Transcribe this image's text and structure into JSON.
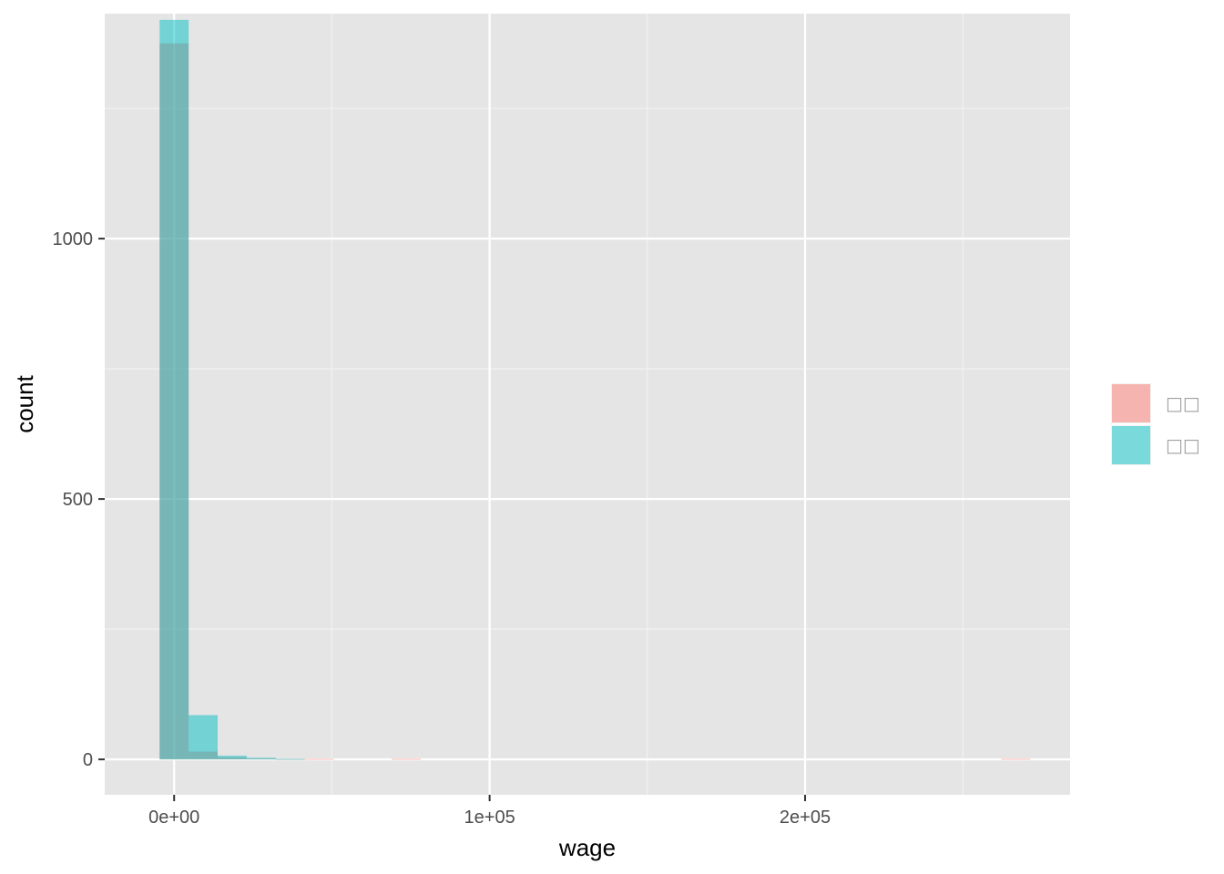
{
  "chart_data": {
    "type": "bar",
    "histogram": true,
    "xlabel": "wage",
    "ylabel": "count",
    "xlim": [
      -22000,
      284000
    ],
    "ylim": [
      -68,
      1432
    ],
    "x_ticks": [
      {
        "value": 0,
        "label": "0e+00"
      },
      {
        "value": 100000,
        "label": "1e+05"
      },
      {
        "value": 200000,
        "label": "2e+05"
      }
    ],
    "y_ticks": [
      {
        "value": 0,
        "label": "0"
      },
      {
        "value": 500,
        "label": "500"
      },
      {
        "value": 1000,
        "label": "1000"
      }
    ],
    "x_minor_grid": [
      50000,
      150000,
      250000
    ],
    "y_minor_grid": [
      250,
      750,
      1250
    ],
    "grid": true,
    "bin_width": 9200,
    "bin_centers": [
      0,
      9200,
      18400,
      27600,
      36800,
      46000,
      55200,
      64400,
      73600,
      266800
    ],
    "series": [
      {
        "name": "",
        "color": "#F8766D",
        "values": [
          1375,
          15,
          4,
          2,
          1,
          1,
          0,
          0,
          1,
          1
        ]
      },
      {
        "name": "",
        "color": "#00BFC4",
        "values": [
          1420,
          85,
          7,
          3,
          1,
          0,
          0,
          0,
          0,
          0
        ]
      }
    ],
    "legend": {
      "position": "right",
      "entries": [
        {
          "label": "□□",
          "color": "#F8766D"
        },
        {
          "label": "□□",
          "color": "#00BFC4"
        }
      ]
    }
  }
}
